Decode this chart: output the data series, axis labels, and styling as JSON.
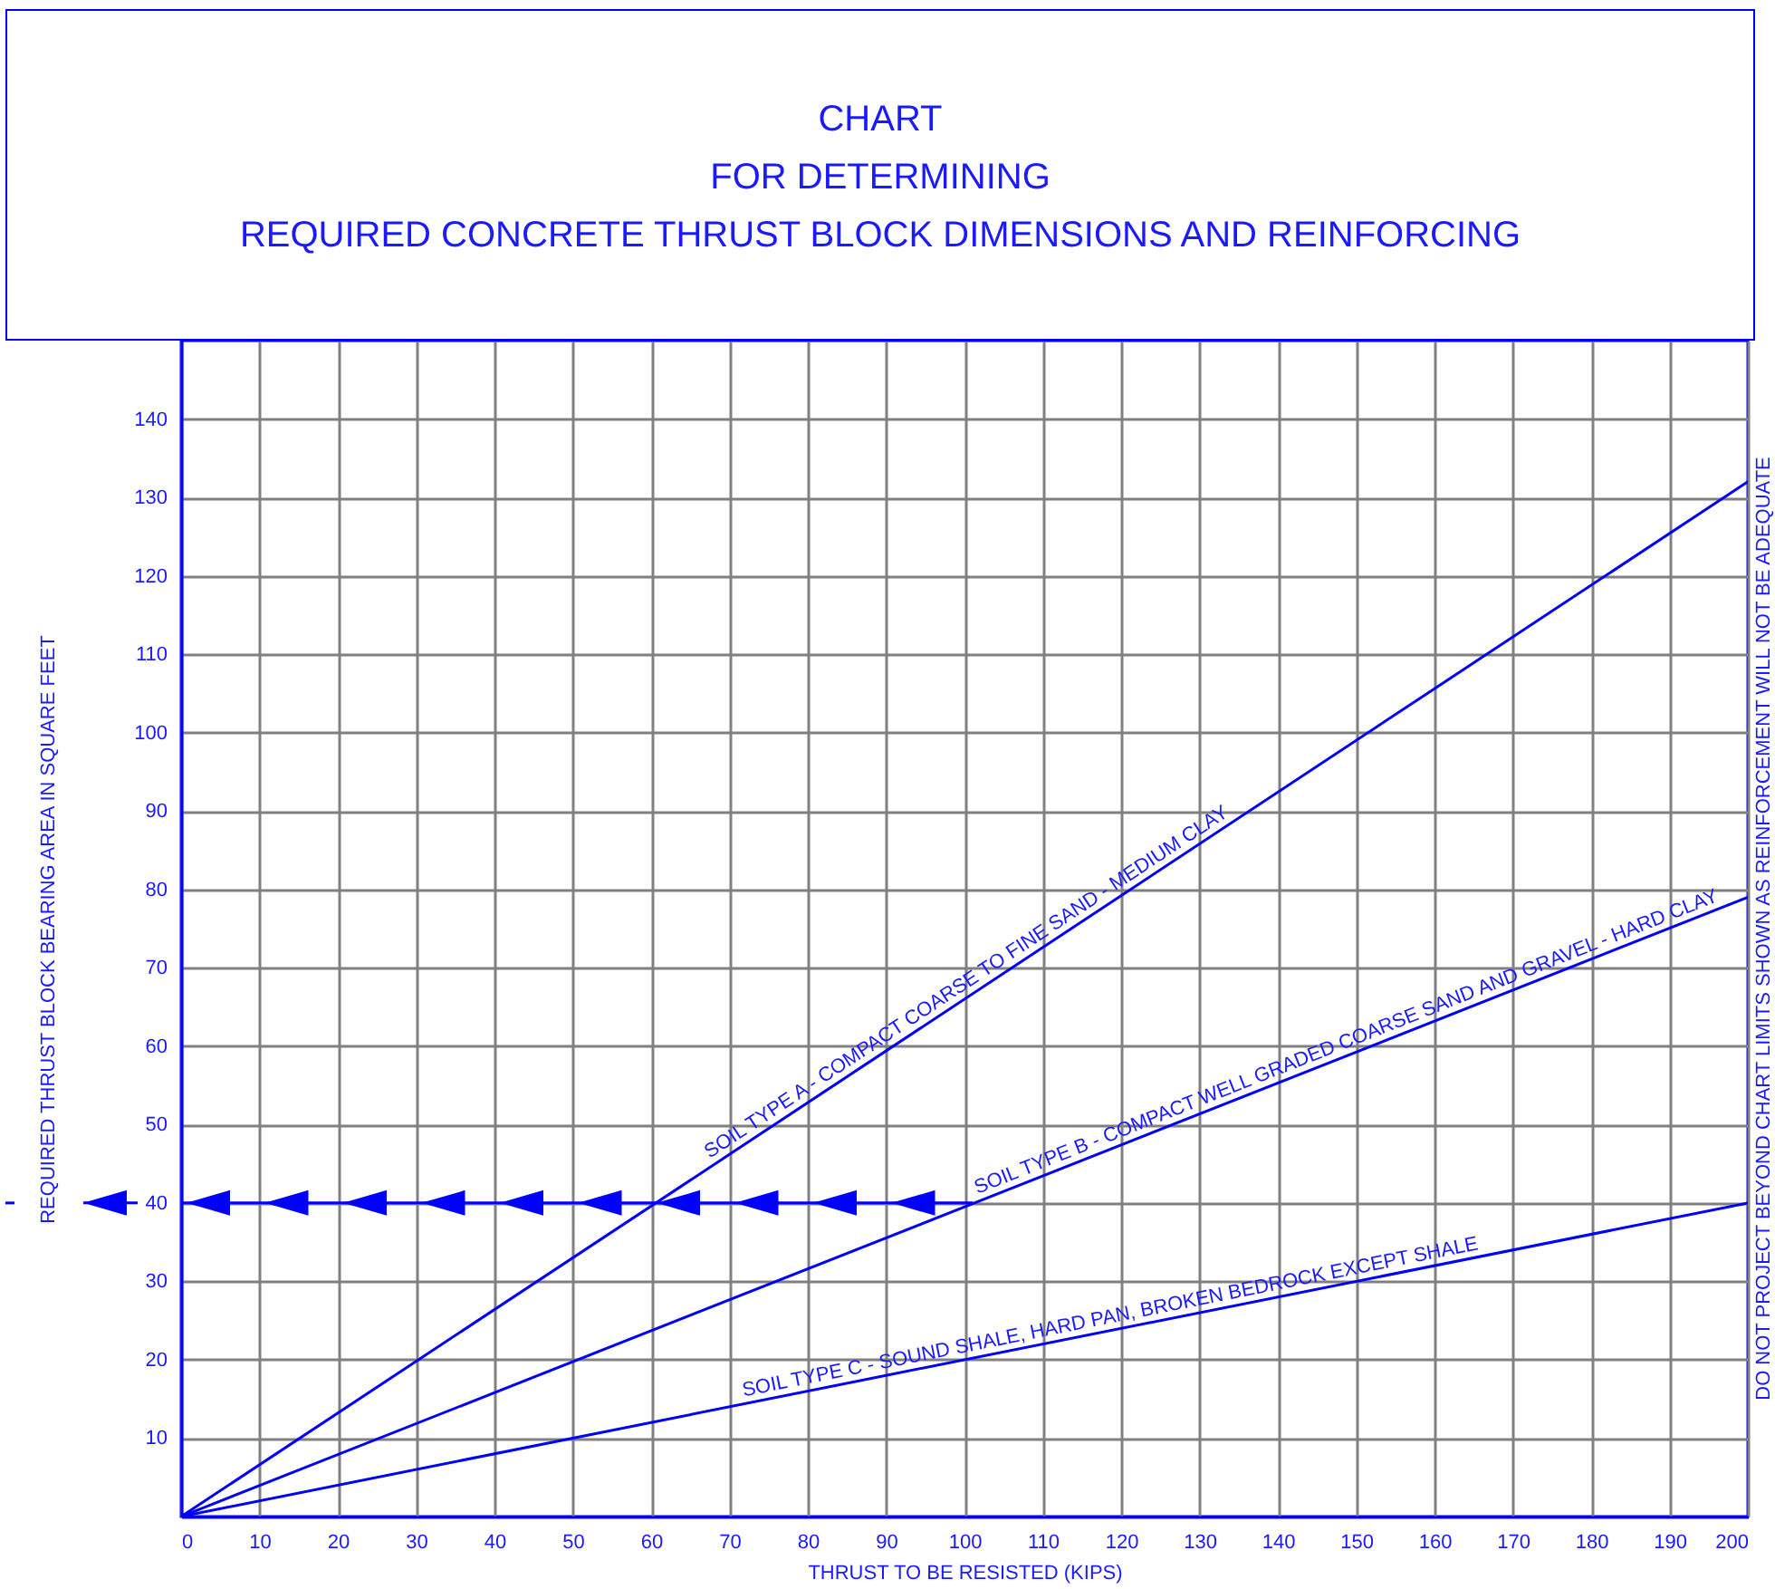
{
  "chart_data": {
    "type": "line",
    "title": "CHART\nFOR DETERMINING\nREQUIRED CONCRETE THRUST BLOCK DIMENSIONS AND REINFORCING",
    "xlabel": "THRUST TO BE RESISTED (KIPS)",
    "ylabel": "REQUIRED THRUST BLOCK BEARING AREA IN SQUARE FEET",
    "xlim": [
      0,
      200
    ],
    "ylim": [
      0,
      150
    ],
    "xticks": [
      0,
      10,
      20,
      30,
      40,
      50,
      60,
      70,
      80,
      90,
      100,
      110,
      120,
      130,
      140,
      150,
      160,
      170,
      180,
      190,
      200
    ],
    "yticks": [
      10,
      20,
      30,
      40,
      50,
      60,
      70,
      80,
      90,
      100,
      110,
      120,
      130,
      140
    ],
    "grid": true,
    "annotations": [
      "DO NOT PROJECT BEYOND CHART LIMITS SHOWN AS REINFORCEMENT WILL NOT BE ADEQUATE"
    ],
    "series": [
      {
        "name": "SOIL TYPE A - COMPACT COARSE TO FINE SAND - MEDIUM CLAY",
        "color": "#0000ff",
        "x": [
          0,
          200
        ],
        "values": [
          0,
          132
        ]
      },
      {
        "name": "SOIL TYPE B - COMPACT WELL GRADED COARSE SAND AND GRAVEL - HARD CLAY",
        "color": "#0000ff",
        "x": [
          0,
          200
        ],
        "values": [
          0,
          79
        ]
      },
      {
        "name": "SOIL TYPE C - SOUND SHALE, HARD PAN, BROKEN BEDROCK EXCEPT SHALE",
        "color": "#0000ff",
        "x": [
          0,
          200
        ],
        "values": [
          0,
          40
        ]
      },
      {
        "color": "#0000ff",
        "x": [
          0,
          101
        ],
        "values": [
          40,
          40
        ]
      }
    ]
  }
}
